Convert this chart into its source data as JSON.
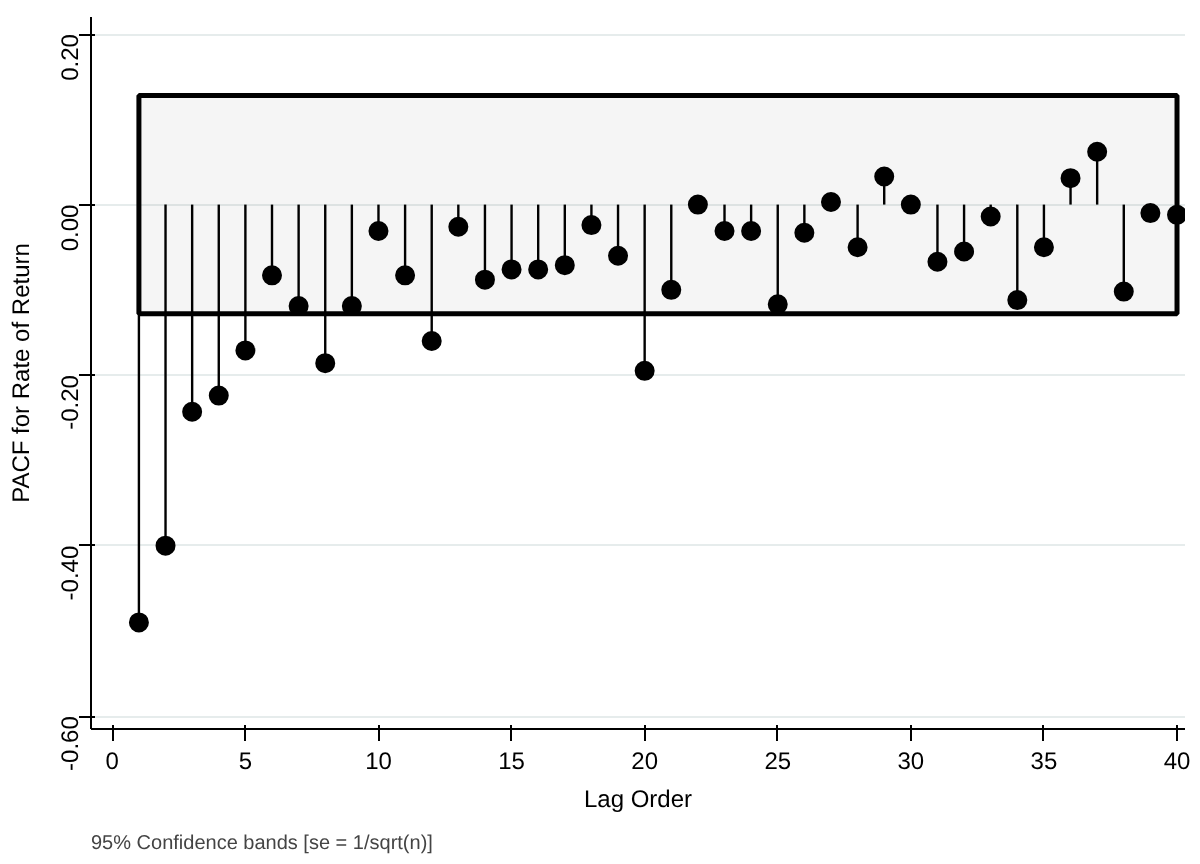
{
  "chart_data": {
    "type": "lollipop",
    "xlabel": "Lag Order",
    "ylabel": "PACF for Rate of Return",
    "annotations": [
      "95% Confidence bands [se = 1/sqrt(n)]"
    ],
    "x": [
      1,
      2,
      3,
      4,
      5,
      6,
      7,
      8,
      9,
      10,
      11,
      12,
      13,
      14,
      15,
      16,
      17,
      18,
      19,
      20,
      21,
      22,
      23,
      24,
      25,
      26,
      27,
      28,
      29,
      30,
      31,
      32,
      33,
      34,
      35,
      36,
      37,
      38,
      39,
      40
    ],
    "series": [
      {
        "color": "#000000",
        "values": [
          -0.49,
          -0.4,
          -0.243,
          -0.224,
          -0.171,
          -0.083,
          -0.119,
          -0.186,
          -0.119,
          -0.031,
          -0.083,
          -0.16,
          -0.026,
          -0.088,
          -0.076,
          -0.076,
          -0.071,
          -0.024,
          -0.06,
          -0.195,
          -0.1,
          0.0,
          -0.031,
          -0.031,
          -0.117,
          -0.033,
          0.003,
          -0.05,
          0.033,
          0.0,
          -0.067,
          -0.055,
          -0.014,
          -0.112,
          -0.05,
          0.031,
          0.062,
          -0.102,
          -0.01,
          -0.012
        ]
      }
    ],
    "bands": [
      {
        "axis": "y",
        "from": -0.128,
        "to": 0.128,
        "color": "#000000"
      }
    ],
    "xlim": [
      -0.8,
      40.3
    ],
    "ylim": [
      -0.615,
      0.22
    ],
    "xticks": [
      0,
      5,
      10,
      15,
      20,
      25,
      30,
      35,
      40
    ],
    "yticks": [
      {
        "value": -0.6,
        "label": "-0.60"
      },
      {
        "value": -0.4,
        "label": "-0.40"
      },
      {
        "value": -0.2,
        "label": "-0.20"
      },
      {
        "value": 0,
        "label": "0.00"
      },
      {
        "value": 0.2,
        "label": "0.20"
      }
    ],
    "grid": "y",
    "marker": "circle"
  }
}
